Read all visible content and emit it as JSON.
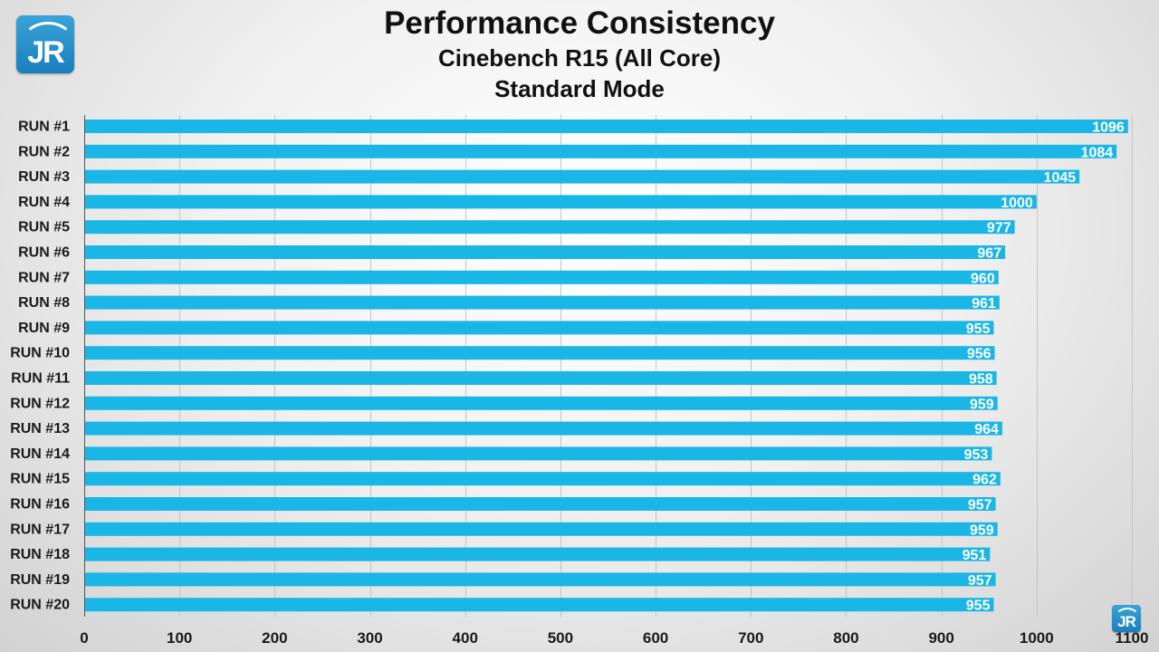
{
  "logo": {
    "text": "JR"
  },
  "chart_data": {
    "type": "bar",
    "orientation": "horizontal",
    "title": "Performance Consistency",
    "subtitle_lines": [
      "Cinebench R15 (All Core)",
      "Standard Mode"
    ],
    "categories": [
      "RUN #1",
      "RUN #2",
      "RUN #3",
      "RUN #4",
      "RUN #5",
      "RUN #6",
      "RUN #7",
      "RUN #8",
      "RUN #9",
      "RUN #10",
      "RUN #11",
      "RUN #12",
      "RUN #13",
      "RUN #14",
      "RUN #15",
      "RUN #16",
      "RUN #17",
      "RUN #18",
      "RUN #19",
      "RUN #20"
    ],
    "values": [
      1096,
      1084,
      1045,
      1000,
      977,
      967,
      960,
      961,
      955,
      956,
      958,
      959,
      964,
      953,
      962,
      957,
      959,
      951,
      957,
      955
    ],
    "xlim": [
      0,
      1100
    ],
    "xticks": [
      0,
      100,
      200,
      300,
      400,
      500,
      600,
      700,
      800,
      900,
      1000,
      1100
    ],
    "xlabel": "",
    "ylabel": "",
    "grid": true,
    "data_labels": true,
    "bar_color": "#1ab6e6",
    "label_color": "#ffffff"
  }
}
